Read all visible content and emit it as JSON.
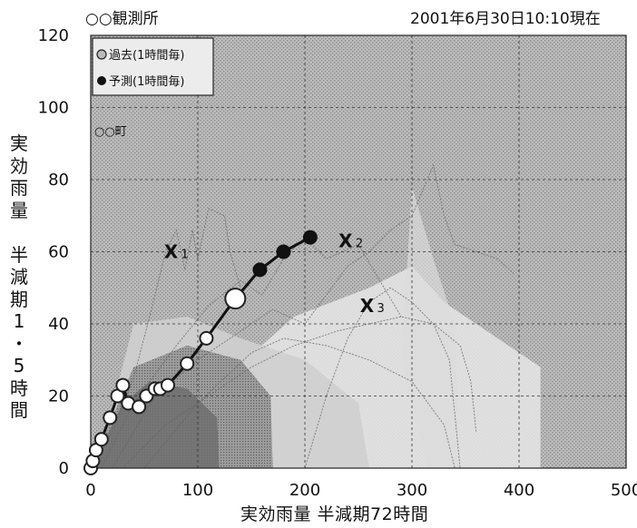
{
  "header": {
    "station": "○○観測所",
    "timestamp": "2001年6月30日10:10現在"
  },
  "chart_data": {
    "type": "scatter",
    "xlabel": "実効雨量 半減期72時間",
    "ylabel_chars": [
      "実",
      "効",
      "雨",
      "量",
      "",
      "半",
      "減",
      "期",
      "1",
      "・",
      "5",
      "時",
      "間"
    ],
    "xlim": [
      0,
      500
    ],
    "ylim": [
      0,
      120
    ],
    "x_ticks": [
      0,
      100,
      200,
      300,
      400,
      500
    ],
    "y_ticks": [
      0,
      20,
      40,
      60,
      80,
      100,
      120
    ],
    "legend": {
      "position": "top-left",
      "entries": [
        {
          "label": "過去(1時間毎)",
          "marker": "open-circle"
        },
        {
          "label": "予測(1時間毎)",
          "marker": "filled-circle"
        }
      ]
    },
    "annotation_town": "○○町",
    "grid": true,
    "series": [
      {
        "name": "過去(1時間毎)",
        "x": [
          0,
          2,
          5,
          10,
          18,
          25,
          30,
          35,
          45,
          52,
          60,
          65,
          72,
          90,
          108
        ],
        "y": [
          0,
          2,
          5,
          8,
          14,
          20,
          23,
          18,
          17,
          20,
          22,
          22,
          23,
          29,
          36
        ]
      },
      {
        "name": "現在",
        "x": [
          135
        ],
        "y": [
          47
        ]
      },
      {
        "name": "予測(1時間毎)",
        "x": [
          158,
          180,
          205
        ],
        "y": [
          55,
          60,
          64
        ]
      }
    ],
    "markers": [
      {
        "label": "X",
        "index": "1",
        "x": 75,
        "y": 60
      },
      {
        "label": "X",
        "index": "2",
        "x": 238,
        "y": 63
      },
      {
        "label": "X",
        "index": "3",
        "x": 258,
        "y": 45
      }
    ],
    "colors": {
      "zone_dark": "#6e6e6e",
      "zone_mid": "#a8a8a8",
      "zone_light": "#cfcfcf",
      "zone_pale": "#e6e6e6",
      "plot_bg": "#c4c4c4"
    }
  }
}
